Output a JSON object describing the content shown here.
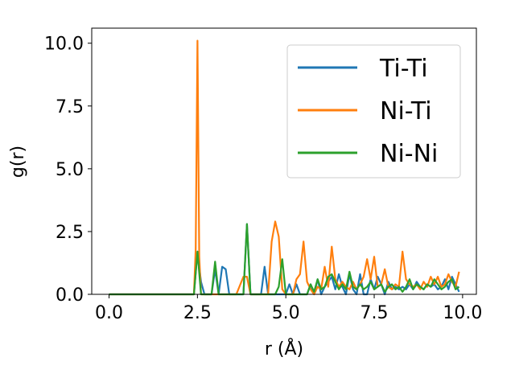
{
  "chart_data": {
    "type": "line",
    "xlabel": "r (Å)",
    "ylabel": "g(r)",
    "xlim": [
      -0.49,
      10.39
    ],
    "ylim": [
      0,
      10.6
    ],
    "xticks": [
      0.0,
      2.5,
      5.0,
      7.5,
      10.0
    ],
    "xtick_labels": [
      "0.0",
      "2.5",
      "5.0",
      "7.5",
      "10.0"
    ],
    "yticks": [
      0.0,
      2.5,
      5.0,
      7.5,
      10.0
    ],
    "ytick_labels": [
      "0.0",
      "2.5",
      "5.0",
      "7.5",
      "10.0"
    ],
    "grid": false,
    "legend_position": "top-right",
    "series": [
      {
        "name": "Ti-Ti",
        "color": "#1f77b4",
        "x": [
          0,
          2.4,
          2.5,
          2.6,
          2.7,
          2.8,
          2.9,
          3.0,
          3.1,
          3.2,
          3.3,
          3.4,
          3.6,
          3.7,
          3.8,
          3.9,
          4.0,
          4.2,
          4.3,
          4.4,
          4.5,
          4.6,
          4.7,
          4.8,
          4.9,
          5.0,
          5.1,
          5.2,
          5.3,
          5.4,
          5.5,
          5.6,
          5.7,
          5.8,
          5.9,
          6.0,
          6.1,
          6.2,
          6.3,
          6.4,
          6.5,
          6.6,
          6.7,
          6.8,
          6.9,
          7.0,
          7.1,
          7.2,
          7.3,
          7.4,
          7.5,
          7.6,
          7.7,
          7.8,
          7.9,
          8.0,
          8.1,
          8.2,
          8.3,
          8.4,
          8.5,
          8.6,
          8.7,
          8.8,
          8.9,
          9.0,
          9.1,
          9.2,
          9.3,
          9.4,
          9.5,
          9.6,
          9.7,
          9.8,
          9.9
        ],
        "y": [
          0,
          0,
          1.7,
          0.5,
          0,
          0,
          0,
          1.0,
          0,
          1.1,
          1.0,
          0,
          0,
          0,
          0,
          2.8,
          0,
          0,
          0,
          1.1,
          0,
          0,
          0,
          0,
          0,
          0,
          0.4,
          0,
          0.4,
          0,
          0,
          0,
          0.4,
          0,
          0.6,
          0,
          0.3,
          0.5,
          0.7,
          0.2,
          0.8,
          0.3,
          0,
          0.8,
          0.2,
          0,
          0.8,
          0,
          0,
          0.6,
          0.2,
          0.7,
          0.4,
          0,
          0.5,
          0.2,
          0.3,
          0.2,
          0.3,
          0.2,
          0.4,
          0.2,
          0.5,
          0.3,
          0.2,
          0.4,
          0.3,
          0.4,
          0.2,
          0.3,
          0.6,
          0.2,
          0.7,
          0.4,
          0.1
        ]
      },
      {
        "name": "Ni-Ti",
        "color": "#ff7f0e",
        "x": [
          0,
          2.4,
          2.45,
          2.5,
          2.55,
          2.6,
          2.7,
          3.6,
          3.8,
          3.9,
          4.0,
          4.5,
          4.6,
          4.7,
          4.8,
          4.9,
          5.0,
          5.1,
          5.2,
          5.3,
          5.4,
          5.5,
          5.6,
          5.7,
          5.8,
          5.9,
          6.0,
          6.1,
          6.2,
          6.3,
          6.4,
          6.5,
          6.6,
          6.7,
          6.8,
          6.9,
          7.0,
          7.1,
          7.2,
          7.3,
          7.4,
          7.5,
          7.6,
          7.7,
          7.8,
          7.9,
          8.0,
          8.1,
          8.2,
          8.3,
          8.4,
          8.5,
          8.6,
          8.7,
          8.8,
          8.9,
          9.0,
          9.1,
          9.2,
          9.3,
          9.4,
          9.5,
          9.6,
          9.7,
          9.8,
          9.9
        ],
        "y": [
          0,
          0,
          1.8,
          10.1,
          1.5,
          0,
          0,
          0,
          0.7,
          0.7,
          0,
          0,
          2.1,
          2.9,
          2.3,
          0.2,
          0,
          0,
          0,
          0.6,
          0.8,
          2.1,
          0.5,
          0.2,
          0,
          0.3,
          0.2,
          1.1,
          0.3,
          1.9,
          0.6,
          0.3,
          0.5,
          0.3,
          0.2,
          0.5,
          0.2,
          0.4,
          0.7,
          1.4,
          0.6,
          1.5,
          0.3,
          0.4,
          1.0,
          0.3,
          0.2,
          0.4,
          0.3,
          1.7,
          0.6,
          0.4,
          0.3,
          0.4,
          0.2,
          0.5,
          0.3,
          0.7,
          0.4,
          0.7,
          0.3,
          0.4,
          0.8,
          0.5,
          0.3,
          0.9
        ]
      },
      {
        "name": "Ni-Ni",
        "color": "#2ca02c",
        "x": [
          0,
          2.4,
          2.5,
          2.6,
          2.7,
          2.8,
          2.9,
          3.0,
          3.1,
          3.2,
          3.6,
          3.8,
          3.9,
          4.0,
          4.6,
          4.7,
          4.8,
          4.9,
          5.0,
          5.1,
          5.2,
          5.3,
          5.4,
          5.5,
          5.6,
          5.7,
          5.8,
          5.9,
          6.0,
          6.1,
          6.2,
          6.3,
          6.4,
          6.5,
          6.6,
          6.7,
          6.8,
          6.9,
          7.0,
          7.1,
          7.2,
          7.3,
          7.4,
          7.5,
          7.6,
          7.7,
          7.8,
          7.9,
          8.0,
          8.1,
          8.2,
          8.3,
          8.4,
          8.5,
          8.6,
          8.7,
          8.8,
          8.9,
          9.0,
          9.1,
          9.2,
          9.3,
          9.4,
          9.5,
          9.6,
          9.7,
          9.8,
          9.9
        ],
        "y": [
          0,
          0,
          1.7,
          0,
          0,
          0,
          0,
          1.3,
          0,
          0,
          0,
          0,
          2.8,
          0,
          0,
          0,
          0.3,
          1.4,
          0,
          0,
          0,
          0,
          0,
          0,
          0,
          0.4,
          0.1,
          0.6,
          0.2,
          0.3,
          0.7,
          0.8,
          0.5,
          0.2,
          0.4,
          0.2,
          0.9,
          0.3,
          0.2,
          0.4,
          0.2,
          0.3,
          0.5,
          0.2,
          0.3,
          0.4,
          0.1,
          0.3,
          0.4,
          0.2,
          0.3,
          0.1,
          0.3,
          0.6,
          0.2,
          0.4,
          0.3,
          0.2,
          0.4,
          0.3,
          0.6,
          0.4,
          0.2,
          0.3,
          0.5,
          0.6,
          0.2,
          0.3
        ]
      }
    ]
  }
}
